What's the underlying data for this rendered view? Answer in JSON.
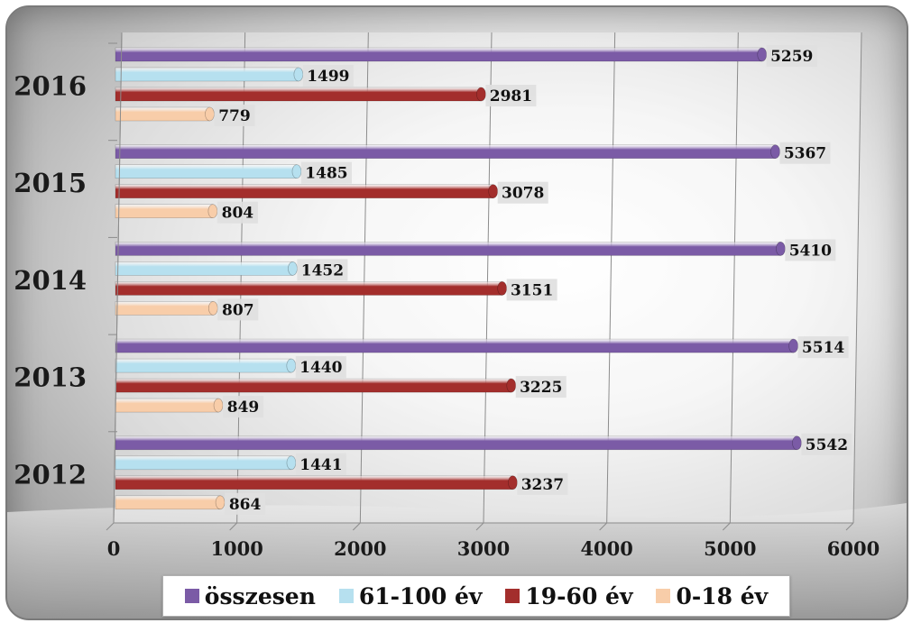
{
  "chart_data": {
    "type": "bar",
    "orientation": "horizontal",
    "categories": [
      "2016",
      "2015",
      "2014",
      "2013",
      "2012"
    ],
    "series": [
      {
        "name": "összesen",
        "color": "#7b5ba6",
        "values": [
          5259,
          5367,
          5410,
          5514,
          5542
        ]
      },
      {
        "name": "61-100 év",
        "color": "#b6e0ef",
        "values": [
          1499,
          1485,
          1452,
          1440,
          1441
        ]
      },
      {
        "name": "19-60 év",
        "color": "#a32e2c",
        "values": [
          2981,
          3078,
          3151,
          3225,
          3237
        ]
      },
      {
        "name": "0-18 év",
        "color": "#f8cda9",
        "values": [
          779,
          804,
          807,
          849,
          864
        ]
      }
    ],
    "xlim": [
      0,
      6000
    ],
    "xticks": [
      "0",
      "1000",
      "2000",
      "3000",
      "4000",
      "5000",
      "6000"
    ],
    "grid": true,
    "data_labels": true,
    "legend_position": "bottom",
    "title": "",
    "xlabel": "",
    "ylabel": ""
  }
}
